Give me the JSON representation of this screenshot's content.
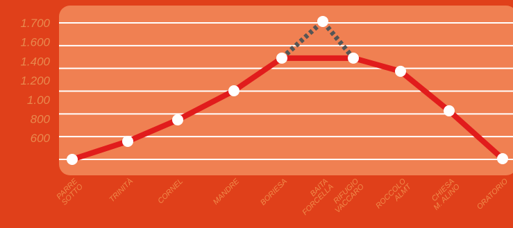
{
  "chart_data": {
    "type": "line",
    "y_axis_labels": [
      "1.700",
      "1.600",
      "1.400",
      "1.200",
      "1.00",
      "800",
      "600"
    ],
    "categories": [
      [
        "PARRE",
        "SOTTO"
      ],
      [
        "TRINITÀ"
      ],
      [
        "CORNEL"
      ],
      [
        "MANDRE"
      ],
      [
        "BORIESA"
      ],
      [
        "BAITA",
        "FORCELLA"
      ],
      [
        "RIFUGIO",
        "VACCARO"
      ],
      [
        "ROCCOLO",
        "ALMT"
      ],
      [
        "CHIESA",
        "M. ALINO"
      ],
      [
        "ORATORIO"
      ]
    ],
    "ylim": [
      550,
      1700
    ],
    "series": [
      {
        "color": "#e11c1c",
        "style": "solid",
        "markers": [
          true,
          true,
          true,
          true,
          true,
          false,
          true,
          true,
          true,
          true
        ],
        "values": [
          550,
          702,
          883,
          1128,
          1403,
          1403,
          1403,
          1292,
          959,
          556
        ]
      },
      {
        "color": "#555555",
        "style": "dotted",
        "markers": [
          false,
          false,
          false,
          false,
          false,
          true,
          false,
          false,
          false,
          false
        ],
        "values": [
          null,
          null,
          null,
          null,
          1403,
          1712,
          1403,
          null,
          null,
          null
        ]
      }
    ]
  }
}
